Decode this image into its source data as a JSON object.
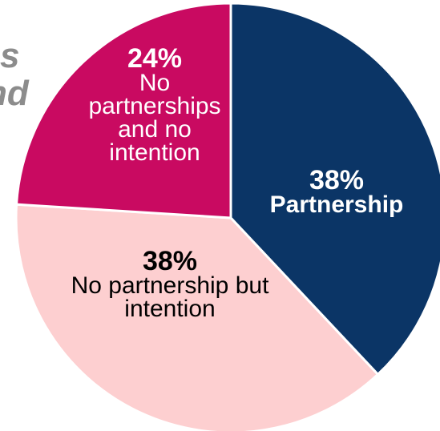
{
  "background_text": {
    "line1": "s",
    "line2": "nd"
  },
  "chart_data": {
    "type": "pie",
    "title": "",
    "categories": [
      "Partnership",
      "No partnership but intention",
      "No partnerships and no intention"
    ],
    "values": [
      38,
      38,
      24
    ],
    "percent_labels": [
      "38%",
      "38%",
      "24%"
    ],
    "label_lines": [
      [
        "Partnership"
      ],
      [
        "No partnership but",
        "intention"
      ],
      [
        "No",
        "partnerships",
        "and no",
        "intention"
      ]
    ],
    "colors": [
      "#0b3566",
      "#fdcfd0",
      "#c90a61"
    ],
    "label_colors": [
      "#ffffff",
      "#000000",
      "#ffffff"
    ],
    "start_angle_deg": 0,
    "direction": "clockwise",
    "legend": "none"
  }
}
